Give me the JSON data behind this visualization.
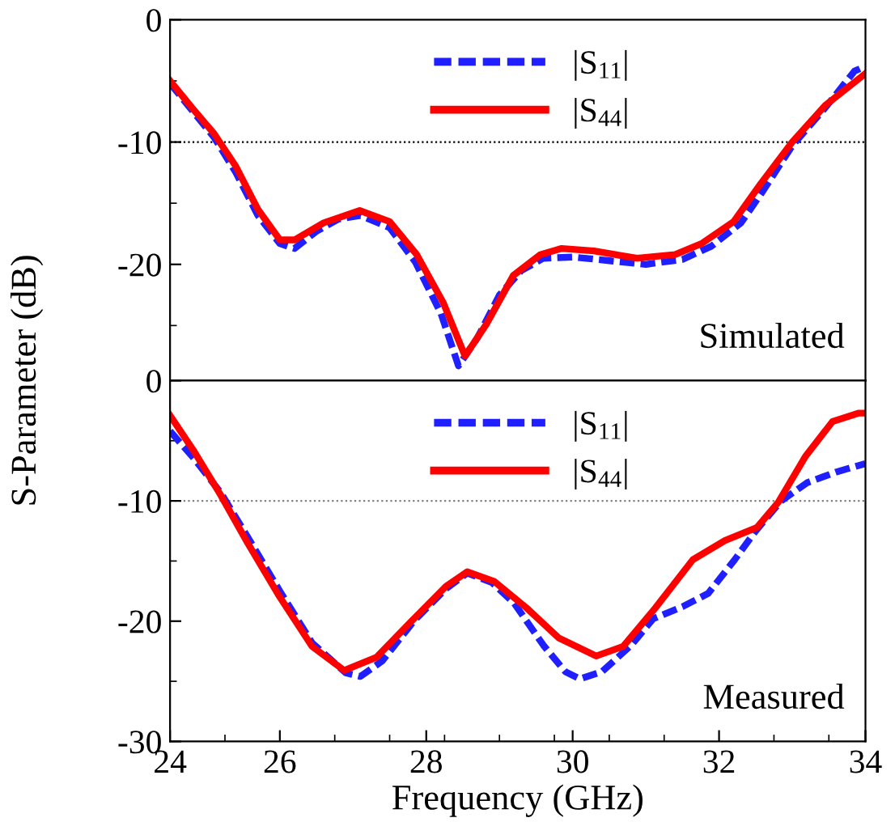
{
  "chart_data": [
    {
      "type": "line",
      "ylabel": "S-Parameter (dB)",
      "xlim": [
        24.5,
        34
      ],
      "ylim": [
        -29.5,
        0
      ],
      "yticks": [
        0,
        -10,
        -20
      ],
      "tick_labels": "y",
      "legend": "top",
      "grid": false,
      "ref_lines": [
        {
          "axis": "y",
          "value": -10,
          "line_style": "dotted",
          "color": "#000000"
        }
      ],
      "annotations": [
        "Simulated"
      ],
      "series": [
        {
          "name": "|S$_{11}$|",
          "color": "#1f1fff",
          "line_style": "dashed",
          "x": [
            24.5,
            24.8,
            25.1,
            25.4,
            25.7,
            26.0,
            26.2,
            26.5,
            26.8,
            27.1,
            27.5,
            27.85,
            28.2,
            28.44,
            28.7,
            29.0,
            29.3,
            29.6,
            30.0,
            30.5,
            31.0,
            31.5,
            31.9,
            32.3,
            32.6,
            33.0,
            33.45,
            33.85,
            34.0
          ],
          "values": [
            -5.2,
            -7.4,
            -9.6,
            -12.5,
            -16,
            -18.3,
            -18.7,
            -17.3,
            -16.3,
            -16.0,
            -17,
            -19.8,
            -24,
            -28.3,
            -26,
            -22.5,
            -20.5,
            -19.5,
            -19.4,
            -19.7,
            -20.0,
            -19.6,
            -18.5,
            -16.6,
            -14,
            -10.3,
            -7.2,
            -4.2,
            -3.8
          ]
        },
        {
          "name": "|S$_{44}$|",
          "color": "#ff0000",
          "line_style": "solid",
          "x": [
            24.5,
            24.8,
            25.1,
            25.4,
            25.7,
            26.0,
            26.2,
            26.6,
            27.09,
            27.5,
            27.87,
            28.23,
            28.53,
            28.82,
            29.19,
            29.56,
            29.85,
            30.29,
            30.88,
            31.4,
            31.76,
            32.2,
            32.57,
            33.0,
            33.45,
            34.0
          ],
          "values": [
            -5.0,
            -7.2,
            -9.3,
            -12,
            -15.5,
            -18.0,
            -18.0,
            -16.6,
            -15.6,
            -16.5,
            -19.2,
            -23.1,
            -27.5,
            -24.9,
            -20.9,
            -19.2,
            -18.7,
            -18.9,
            -19.5,
            -19.2,
            -18.3,
            -16.5,
            -13.4,
            -10,
            -7.0,
            -4.4
          ]
        }
      ]
    },
    {
      "type": "line",
      "xlabel": "Frequency (GHz)",
      "xlim": [
        24.5,
        34
      ],
      "xticks": [
        {
          "value": 24.5,
          "label": "24"
        },
        26,
        28,
        30,
        32,
        34
      ],
      "ylim": [
        -30,
        0
      ],
      "yticks": [
        0,
        -10,
        -20,
        -30
      ],
      "legend": "top",
      "grid": false,
      "ref_lines": [
        {
          "axis": "y",
          "value": -10,
          "line_style": "dotted",
          "color": "#808080"
        }
      ],
      "annotations": [
        "Measured"
      ],
      "series": [
        {
          "name": "|S$_{11}$|",
          "color": "#1f1fff",
          "line_style": "dashed",
          "x": [
            24.5,
            24.83,
            25.19,
            25.56,
            26.0,
            26.44,
            26.9,
            27.1,
            27.4,
            27.83,
            28.27,
            28.56,
            28.9,
            29.2,
            29.6,
            29.9,
            30.1,
            30.4,
            30.8,
            31.1,
            31.5,
            31.85,
            32.2,
            32.5,
            32.85,
            33.2,
            33.6,
            34.0
          ],
          "values": [
            -4.2,
            -6.5,
            -9.3,
            -13.0,
            -17.5,
            -21.8,
            -24.3,
            -24.6,
            -23.3,
            -20.0,
            -17.3,
            -16.0,
            -16.8,
            -18.5,
            -22,
            -24.2,
            -24.8,
            -24.2,
            -22.0,
            -19.8,
            -18.8,
            -17.7,
            -15,
            -12.5,
            -10.0,
            -8.5,
            -7.6,
            -6.9
          ]
        },
        {
          "name": "|S$_{44}$|",
          "color": "#ff0000",
          "line_style": "solid",
          "x": [
            24.5,
            24.83,
            25.19,
            25.56,
            26.0,
            26.44,
            26.88,
            27.32,
            27.83,
            28.27,
            28.56,
            28.93,
            29.37,
            29.81,
            30.32,
            30.69,
            31.13,
            31.64,
            32.08,
            32.52,
            32.81,
            33.18,
            33.55,
            33.91,
            34.0
          ],
          "values": [
            -2.9,
            -5.9,
            -9.5,
            -13.5,
            -18.0,
            -22.1,
            -24.1,
            -23.0,
            -19.8,
            -17.1,
            -15.9,
            -16.7,
            -18.9,
            -21.4,
            -22.9,
            -22.1,
            -18.9,
            -14.9,
            -13.3,
            -12.2,
            -10.1,
            -6.3,
            -3.4,
            -2.7,
            -2.7
          ]
        }
      ]
    }
  ]
}
